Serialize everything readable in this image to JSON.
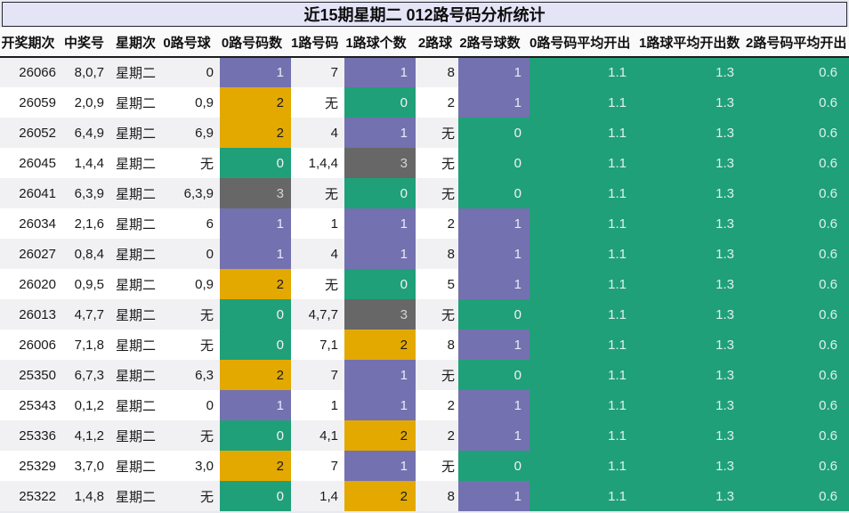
{
  "title": "近15期星期二 012路号码分析统计",
  "colors": {
    "page_background": "#e9e9f2",
    "title_box_background": "#e4e4f7",
    "header_background": "#fafafb",
    "row_odd": "#f1f1f3",
    "row_even": "#ffffff",
    "stat_green": "#20a078",
    "count_bg": {
      "0": "#20a078",
      "1": "#7471b0",
      "2": "#e3a900",
      "3": "#676767"
    },
    "count_text": {
      "0": "#f2f2f2",
      "1": "#eaeaf5",
      "2": "#1a1a1a",
      "3": "#d5d5d5"
    }
  },
  "table": {
    "headers": [
      "开奖期次",
      "中奖号",
      "星期次",
      "0路号球",
      "0路号码数",
      "1路号码",
      "1路球个数",
      "2路球",
      "2路号球数",
      "0路号码平均开出",
      "1路球平均开出数",
      "2路号码平均开出"
    ],
    "rows": [
      [
        "26066",
        "8,0,7",
        "星期二",
        "0",
        "1",
        "7",
        "1",
        "8",
        "1",
        "1.1",
        "1.3",
        "0.6"
      ],
      [
        "26059",
        "2,0,9",
        "星期二",
        "0,9",
        "2",
        "无",
        "0",
        "2",
        "1",
        "1.1",
        "1.3",
        "0.6"
      ],
      [
        "26052",
        "6,4,9",
        "星期二",
        "6,9",
        "2",
        "4",
        "1",
        "无",
        "0",
        "1.1",
        "1.3",
        "0.6"
      ],
      [
        "26045",
        "1,4,4",
        "星期二",
        "无",
        "0",
        "1,4,4",
        "3",
        "无",
        "0",
        "1.1",
        "1.3",
        "0.6"
      ],
      [
        "26041",
        "6,3,9",
        "星期二",
        "6,3,9",
        "3",
        "无",
        "0",
        "无",
        "0",
        "1.1",
        "1.3",
        "0.6"
      ],
      [
        "26034",
        "2,1,6",
        "星期二",
        "6",
        "1",
        "1",
        "1",
        "2",
        "1",
        "1.1",
        "1.3",
        "0.6"
      ],
      [
        "26027",
        "0,8,4",
        "星期二",
        "0",
        "1",
        "4",
        "1",
        "8",
        "1",
        "1.1",
        "1.3",
        "0.6"
      ],
      [
        "26020",
        "0,9,5",
        "星期二",
        "0,9",
        "2",
        "无",
        "0",
        "5",
        "1",
        "1.1",
        "1.3",
        "0.6"
      ],
      [
        "26013",
        "4,7,7",
        "星期二",
        "无",
        "0",
        "4,7,7",
        "3",
        "无",
        "0",
        "1.1",
        "1.3",
        "0.6"
      ],
      [
        "26006",
        "7,1,8",
        "星期二",
        "无",
        "0",
        "7,1",
        "2",
        "8",
        "1",
        "1.1",
        "1.3",
        "0.6"
      ],
      [
        "25350",
        "6,7,3",
        "星期二",
        "6,3",
        "2",
        "7",
        "1",
        "无",
        "0",
        "1.1",
        "1.3",
        "0.6"
      ],
      [
        "25343",
        "0,1,2",
        "星期二",
        "0",
        "1",
        "1",
        "1",
        "2",
        "1",
        "1.1",
        "1.3",
        "0.6"
      ],
      [
        "25336",
        "4,1,2",
        "星期二",
        "无",
        "0",
        "4,1",
        "2",
        "2",
        "1",
        "1.1",
        "1.3",
        "0.6"
      ],
      [
        "25329",
        "3,7,0",
        "星期二",
        "3,0",
        "2",
        "7",
        "1",
        "无",
        "0",
        "1.1",
        "1.3",
        "0.6"
      ],
      [
        "25322",
        "1,4,8",
        "星期二",
        "无",
        "0",
        "1,4",
        "2",
        "8",
        "1",
        "1.1",
        "1.3",
        "0.6"
      ]
    ]
  },
  "chart_data": {
    "type": "table",
    "title": "近15期星期二 012路号码分析统计",
    "columns": [
      "开奖期次",
      "中奖号",
      "星期次",
      "0路号球",
      "0路号码数",
      "1路号码",
      "1路球个数",
      "2路球",
      "2路号球数",
      "0路号码平均开出",
      "1路球平均开出数",
      "2路号码平均开出"
    ],
    "rows": [
      [
        "26066",
        "8,0,7",
        "星期二",
        "0",
        1,
        "7",
        1,
        "8",
        1,
        1.1,
        1.3,
        0.6
      ],
      [
        "26059",
        "2,0,9",
        "星期二",
        "0,9",
        2,
        "无",
        0,
        "2",
        1,
        1.1,
        1.3,
        0.6
      ],
      [
        "26052",
        "6,4,9",
        "星期二",
        "6,9",
        2,
        "4",
        1,
        "无",
        0,
        1.1,
        1.3,
        0.6
      ],
      [
        "26045",
        "1,4,4",
        "星期二",
        "无",
        0,
        "1,4,4",
        3,
        "无",
        0,
        1.1,
        1.3,
        0.6
      ],
      [
        "26041",
        "6,3,9",
        "星期二",
        "6,3,9",
        3,
        "无",
        0,
        "无",
        0,
        1.1,
        1.3,
        0.6
      ],
      [
        "26034",
        "2,1,6",
        "星期二",
        "6",
        1,
        "1",
        1,
        "2",
        1,
        1.1,
        1.3,
        0.6
      ],
      [
        "26027",
        "0,8,4",
        "星期二",
        "0",
        1,
        "4",
        1,
        "8",
        1,
        1.1,
        1.3,
        0.6
      ],
      [
        "26020",
        "0,9,5",
        "星期二",
        "0,9",
        2,
        "无",
        0,
        "5",
        1,
        1.1,
        1.3,
        0.6
      ],
      [
        "26013",
        "4,7,7",
        "星期二",
        "无",
        0,
        "4,7,7",
        3,
        "无",
        0,
        1.1,
        1.3,
        0.6
      ],
      [
        "26006",
        "7,1,8",
        "星期二",
        "无",
        0,
        "7,1",
        2,
        "8",
        1,
        1.1,
        1.3,
        0.6
      ],
      [
        "25350",
        "6,7,3",
        "星期二",
        "6,3",
        2,
        "7",
        1,
        "无",
        0,
        1.1,
        1.3,
        0.6
      ],
      [
        "25343",
        "0,1,2",
        "星期二",
        "0",
        1,
        "1",
        1,
        "2",
        1,
        1.1,
        1.3,
        0.6
      ],
      [
        "25336",
        "4,1,2",
        "星期二",
        "无",
        0,
        "4,1",
        2,
        "2",
        1,
        1.1,
        1.3,
        0.6
      ],
      [
        "25329",
        "3,7,0",
        "星期二",
        "3,0",
        2,
        "7",
        1,
        "无",
        0,
        1.1,
        1.3,
        0.6
      ],
      [
        "25322",
        "1,4,8",
        "星期二",
        "无",
        0,
        "1,4",
        2,
        "8",
        1,
        1.1,
        1.3,
        0.6
      ]
    ],
    "cell_color_legend": {
      "count_0": "#20a078",
      "count_1": "#7471b0",
      "count_2": "#e3a900",
      "count_3": "#676767",
      "average_columns_background": "#20a078"
    }
  }
}
